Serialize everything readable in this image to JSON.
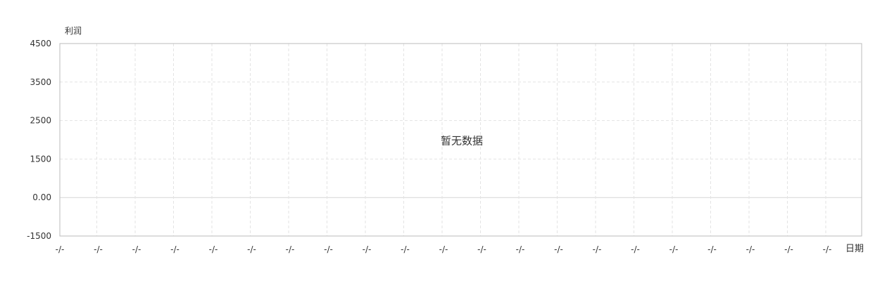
{
  "chart_data": {
    "type": "line",
    "title": "",
    "xlabel": "日期",
    "ylabel": "利润",
    "empty_message": "暂无数据",
    "ylim": [
      -1500,
      4500
    ],
    "y_ticks": [
      "4500",
      "3500",
      "2500",
      "1500",
      "0.00",
      "-1500"
    ],
    "x_ticks": [
      "-/-",
      "-/-",
      "-/-",
      "-/-",
      "-/-",
      "-/-",
      "-/-",
      "-/-",
      "-/-",
      "-/-",
      "-/-",
      "-/-",
      "-/-",
      "-/-",
      "-/-",
      "-/-",
      "-/-",
      "-/-",
      "-/-",
      "-/-",
      "-/-"
    ],
    "series": [],
    "grid": true,
    "colors": {
      "axis": "#bbbbbb",
      "grid": "#e3e3e3",
      "text": "#333333",
      "zero_line": "#d6d6d6"
    }
  }
}
